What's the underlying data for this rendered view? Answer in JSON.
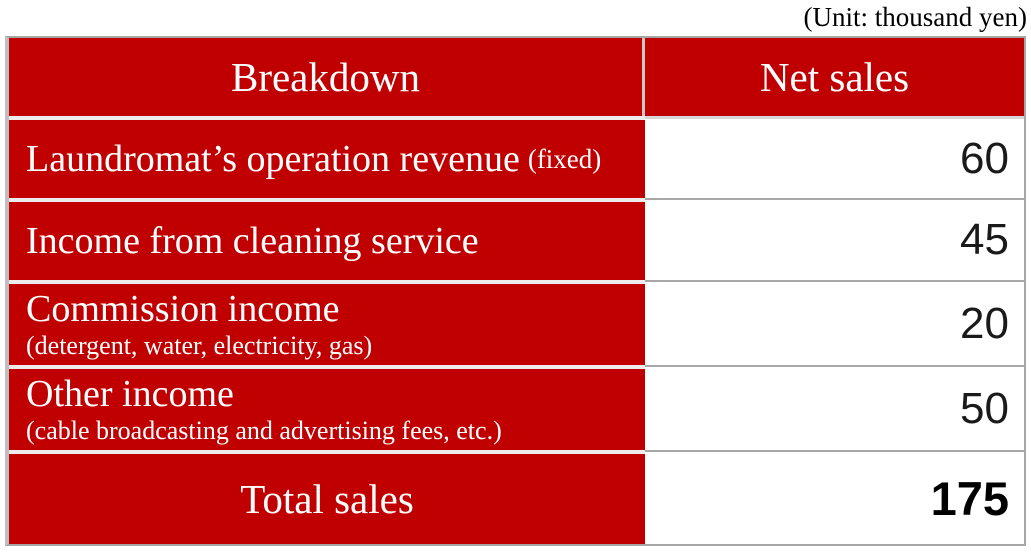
{
  "unit_note": "(Unit: thousand yen)",
  "table": {
    "headers": {
      "breakdown": "Breakdown",
      "net_sales": "Net sales"
    },
    "rows": [
      {
        "label": "Laundromat’s operation revenue",
        "note": "(fixed)",
        "value": "60"
      },
      {
        "label": "Income from cleaning service",
        "value": "45"
      },
      {
        "label": "Commission income",
        "note": "(detergent, water, electricity, gas)",
        "value": "20"
      },
      {
        "label": "Other income",
        "note": "(cable broadcasting and advertising fees, etc.)",
        "value": "50"
      }
    ],
    "total": {
      "label": "Total sales",
      "value": "175"
    }
  },
  "colors": {
    "accent_red": "#c00000",
    "border_gray": "#a6a6a6",
    "header_text": "#ffffff",
    "value_text": "#1a1a1a"
  },
  "chart_data": {
    "type": "table",
    "title": "",
    "unit": "(Unit: thousand yen)",
    "columns": [
      "Breakdown",
      "Net sales"
    ],
    "rows": [
      [
        "Laundromat’s operation revenue (fixed)",
        60
      ],
      [
        "Income from cleaning service",
        45
      ],
      [
        "Commission income (detergent, water, electricity, gas)",
        20
      ],
      [
        "Other income (cable broadcasting and advertising fees, etc.)",
        50
      ]
    ],
    "total_row": [
      "Total sales",
      175
    ]
  }
}
